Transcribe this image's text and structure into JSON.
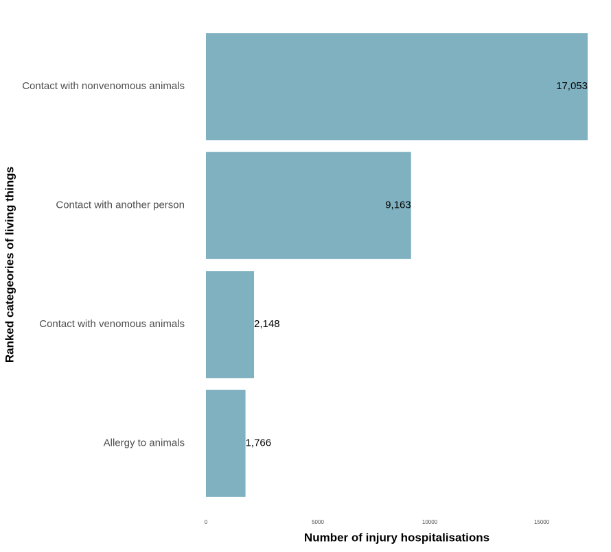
{
  "chart_data": {
    "type": "bar",
    "orientation": "horizontal",
    "x_label": "Number of injury hospitalisations",
    "y_label": "Ranked categeories of living things",
    "categories": [
      "Contact with nonvenomous animals",
      "Contact with another person",
      "Contact with venomous animals",
      "Allergy to animals"
    ],
    "values": [
      17053,
      9163,
      2148,
      1766
    ],
    "value_labels": [
      "17,053",
      "9,163",
      "2,148",
      "1,766"
    ],
    "color": "#80b1c1",
    "xlim": [
      0,
      17053
    ],
    "xticks": [
      0,
      5000,
      10000,
      15000
    ],
    "grid": false
  }
}
